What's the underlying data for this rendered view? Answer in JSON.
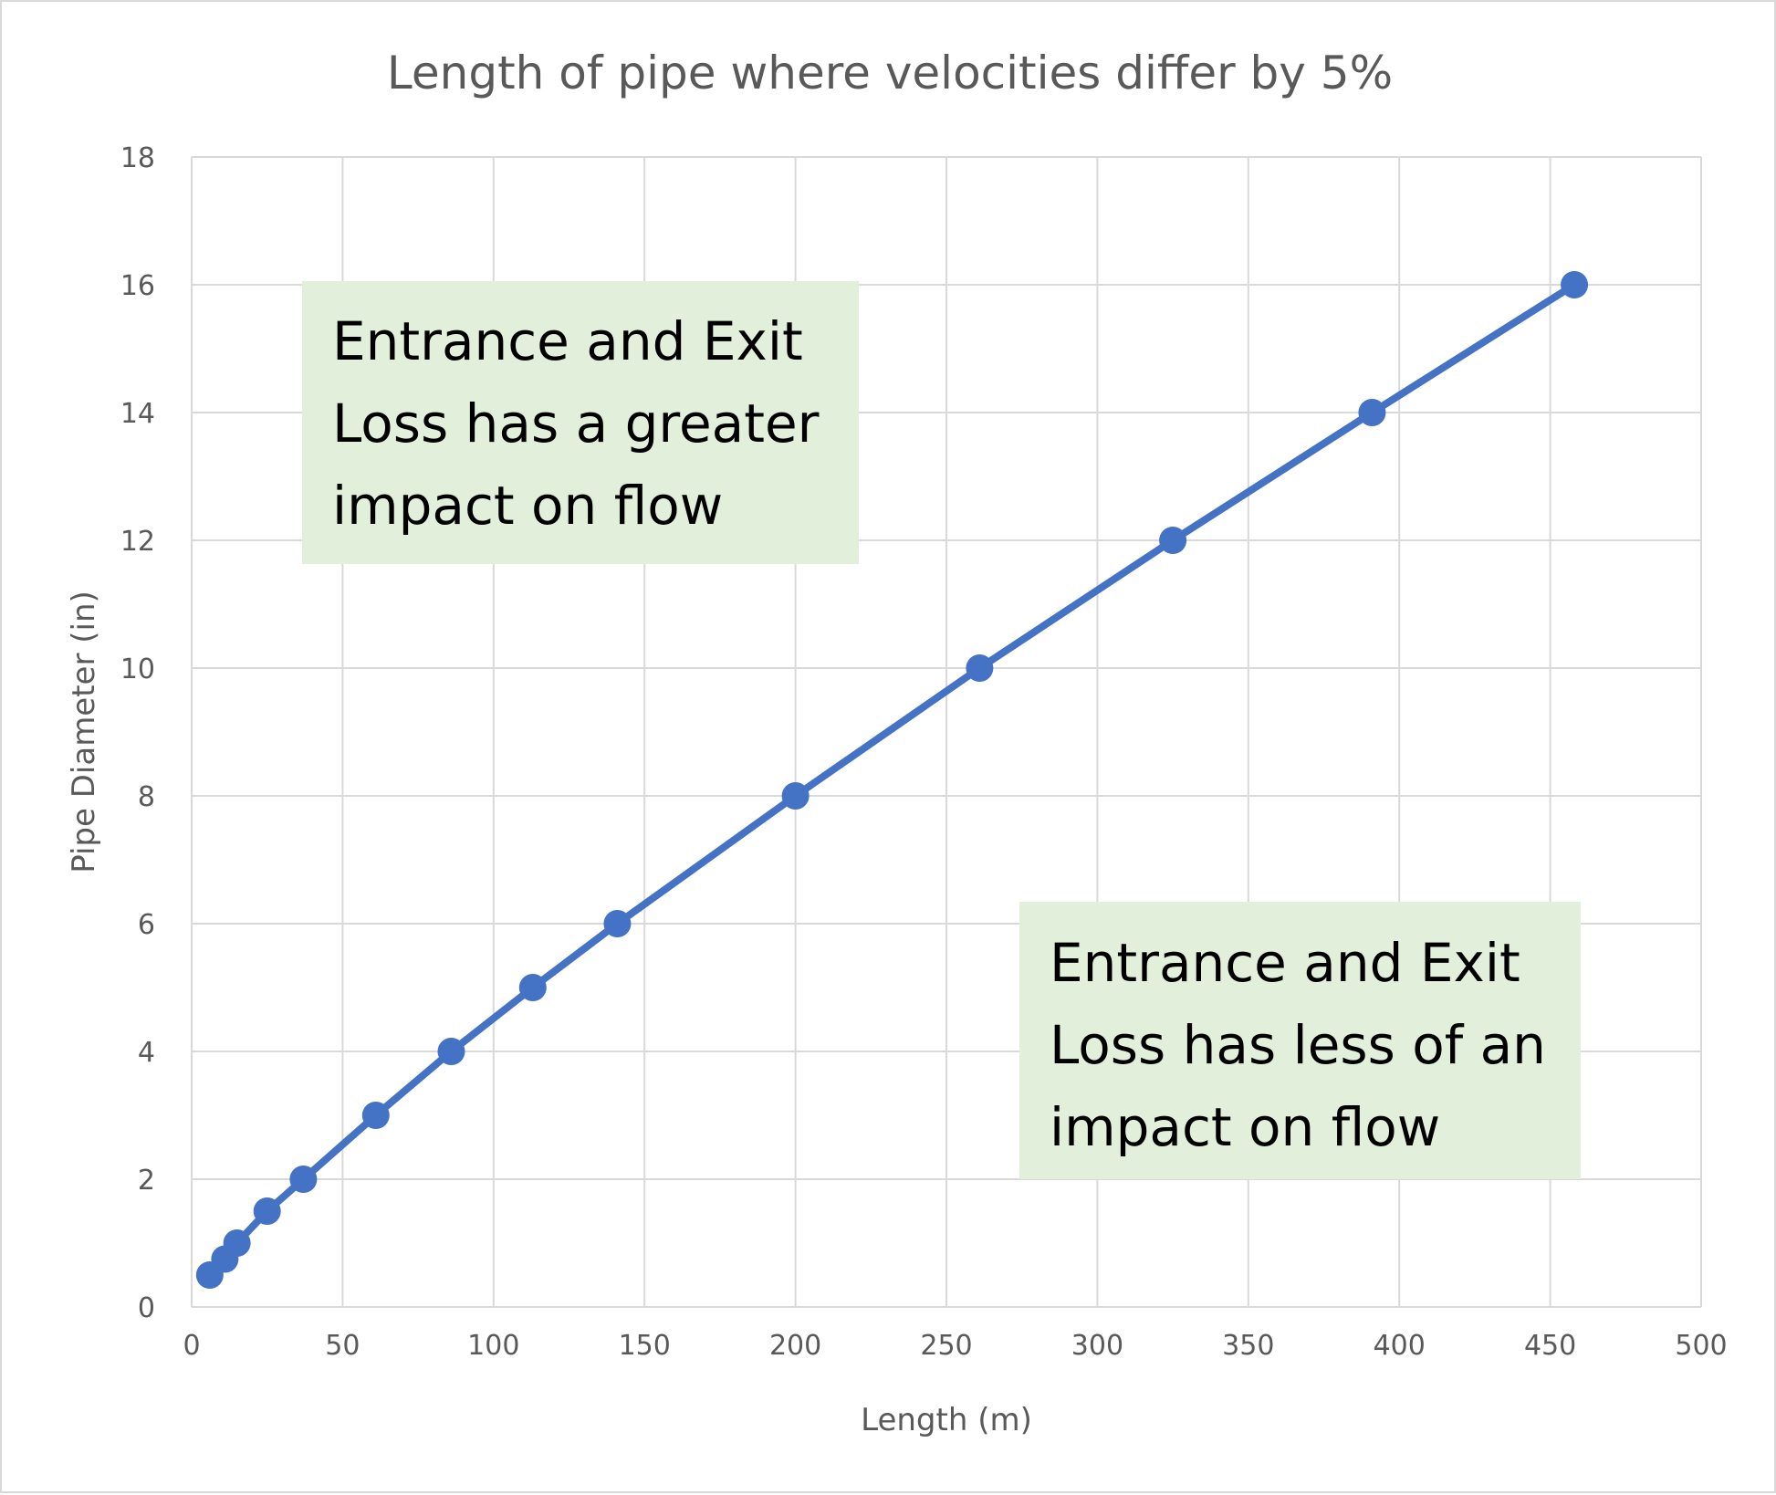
{
  "chart_data": {
    "type": "line",
    "title": "Length of pipe where velocities differ by 5%",
    "xlabel": "Length (m)",
    "ylabel": "Pipe Diameter (in)",
    "xlim": [
      0,
      500
    ],
    "ylim": [
      0,
      18
    ],
    "xticks": [
      "0",
      "50",
      "100",
      "150",
      "200",
      "250",
      "300",
      "350",
      "400",
      "450",
      "500"
    ],
    "yticks": [
      "0",
      "2",
      "4",
      "6",
      "8",
      "10",
      "12",
      "14",
      "16",
      "18"
    ],
    "grid": true,
    "legend": "none",
    "series": [
      {
        "color": "#4472c4",
        "x": [
          6,
          11,
          15,
          25,
          37,
          61,
          86,
          113,
          141,
          200,
          261,
          325,
          391,
          458
        ],
        "y": [
          0.5,
          0.75,
          1,
          1.5,
          2,
          3,
          4,
          5,
          6,
          8,
          10,
          12,
          14,
          16
        ]
      }
    ],
    "annotations": [
      {
        "lines": [
          "Entrance and Exit",
          "Loss has a greater",
          "impact on flow"
        ],
        "fill": "#e2efda"
      },
      {
        "lines": [
          "Entrance and Exit",
          "Loss has less of an",
          "impact on flow"
        ],
        "fill": "#e2efda"
      }
    ]
  }
}
